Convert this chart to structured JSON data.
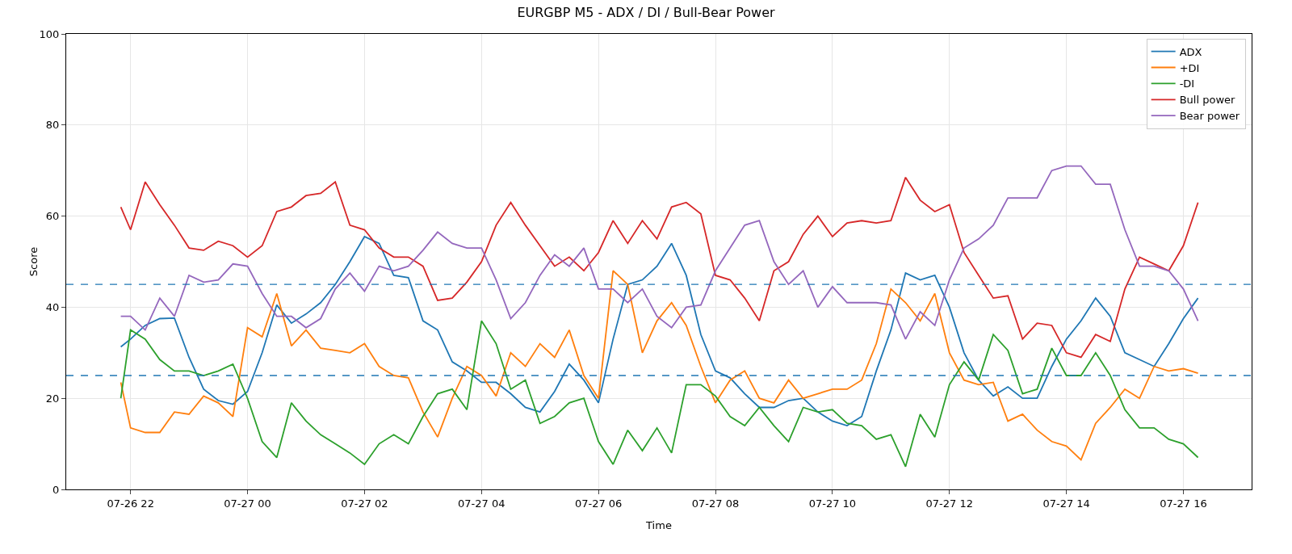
{
  "chart_data": {
    "type": "line",
    "title": "EURGBP M5 - ADX / DI / Bull-Bear Power",
    "xlabel": "Time",
    "ylabel": "Score",
    "x": [
      "--07-26T21:50",
      "--07-26T22:00",
      "--07-26T22:15",
      "--07-26T22:30",
      "--07-26T22:45",
      "--07-26T23:00",
      "--07-26T23:15",
      "--07-26T23:30",
      "--07-26T23:45",
      "--07-27T00:00",
      "--07-27T00:15",
      "--07-27T00:30",
      "--07-27T00:45",
      "--07-27T01:00",
      "--07-27T01:15",
      "--07-27T01:30",
      "--07-27T01:45",
      "--07-27T02:00",
      "--07-27T02:15",
      "--07-27T02:30",
      "--07-27T02:45",
      "--07-27T03:00",
      "--07-27T03:15",
      "--07-27T03:30",
      "--07-27T03:45",
      "--07-27T04:00",
      "--07-27T04:15",
      "--07-27T04:30",
      "--07-27T04:45",
      "--07-27T05:00",
      "--07-27T05:15",
      "--07-27T05:30",
      "--07-27T05:45",
      "--07-27T06:00",
      "--07-27T06:15",
      "--07-27T06:30",
      "--07-27T06:45",
      "--07-27T07:00",
      "--07-27T07:15",
      "--07-27T07:30",
      "--07-27T07:45",
      "--07-27T08:00",
      "--07-27T08:15",
      "--07-27T08:30",
      "--07-27T08:45",
      "--07-27T09:00",
      "--07-27T09:15",
      "--07-27T09:30",
      "--07-27T09:45",
      "--07-27T10:00",
      "--07-27T10:15",
      "--07-27T10:30",
      "--07-27T10:45",
      "--07-27T11:00",
      "--07-27T11:15",
      "--07-27T11:30",
      "--07-27T11:45",
      "--07-27T12:00",
      "--07-27T12:15",
      "--07-27T12:30",
      "--07-27T12:45",
      "--07-27T13:00",
      "--07-27T13:15",
      "--07-27T13:30",
      "--07-27T13:45",
      "--07-27T14:00",
      "--07-27T14:15",
      "--07-27T14:30",
      "--07-27T14:45",
      "--07-27T15:00",
      "--07-27T15:15",
      "--07-27T15:30",
      "--07-27T15:45",
      "--07-27T16:00",
      "--07-27T16:15"
    ],
    "series": [
      {
        "name": "ADX",
        "color": "#1f77b4",
        "values": [
          31.3,
          33,
          36,
          37.5,
          37.6,
          29,
          22,
          19.5,
          18.7,
          21.5,
          30,
          40.5,
          36.5,
          38.5,
          41,
          45,
          50,
          55.5,
          54,
          47,
          46.5,
          37,
          35,
          28,
          26,
          23.5,
          23.5,
          21,
          18,
          17,
          21.5,
          27.5,
          24,
          19,
          33,
          45,
          46,
          49,
          54,
          47,
          34,
          26,
          24.5,
          21,
          18,
          18,
          19.5,
          20,
          17,
          15,
          14,
          16,
          26,
          35,
          47.5,
          46,
          47,
          40,
          30,
          24,
          20.5,
          22.5,
          20,
          20,
          27,
          33,
          37,
          42,
          38,
          30,
          28.5,
          27,
          32,
          37.5,
          42
        ]
      },
      {
        "name": "+DI",
        "color": "#ff7f0e",
        "values": [
          23.5,
          13.5,
          12.5,
          12.5,
          17,
          16.5,
          20.5,
          19,
          16,
          35.5,
          33.5,
          43,
          31.5,
          35,
          31,
          30.5,
          30,
          32,
          27,
          25,
          24.5,
          17,
          11.5,
          20,
          27,
          25,
          20.5,
          30,
          27,
          32,
          29,
          35,
          25,
          20,
          48,
          45,
          30,
          37,
          41,
          36,
          27,
          19,
          24,
          26,
          20,
          19,
          24,
          20,
          21,
          22,
          22,
          24,
          32,
          44,
          41,
          37,
          43,
          30,
          24,
          23,
          23.5,
          15,
          16.5,
          13,
          10.5,
          9.5,
          6.5,
          14.5,
          18,
          22,
          20,
          27,
          26,
          26.5,
          25.5
        ]
      },
      {
        "name": "-DI",
        "color": "#2ca02c",
        "values": [
          20,
          35,
          33,
          28.5,
          26,
          26,
          25,
          26,
          27.5,
          20,
          10.5,
          7,
          19,
          15,
          12,
          10,
          8,
          5.5,
          10,
          12,
          10,
          16,
          21,
          22,
          17.5,
          37,
          32,
          22,
          24,
          14.5,
          16,
          19,
          20,
          10.5,
          5.5,
          13,
          8.5,
          13.5,
          8,
          23,
          23,
          20.5,
          16,
          14,
          18,
          14,
          10.5,
          18,
          17,
          17.5,
          14.5,
          14,
          11,
          12,
          5,
          16.5,
          11.5,
          23,
          28,
          24,
          34,
          30.5,
          21,
          22,
          31,
          25,
          25,
          30,
          25,
          17.5,
          13.5,
          13.5,
          11,
          10,
          7
        ]
      },
      {
        "name": "Bull power",
        "color": "#d62728",
        "values": [
          62,
          57,
          67.5,
          62.5,
          58,
          53,
          52.5,
          54.5,
          53.5,
          51,
          53.5,
          61,
          62,
          64.5,
          65,
          67.5,
          58,
          57,
          53,
          51,
          51,
          49,
          41.5,
          42,
          45.5,
          50,
          58,
          63,
          58,
          53.5,
          49,
          51,
          48,
          52,
          59,
          54,
          59,
          55,
          62,
          63,
          60.5,
          47,
          46,
          42,
          37,
          48,
          50,
          56,
          60,
          55.5,
          58.5,
          59,
          58.5,
          59,
          68.5,
          63.5,
          61,
          62.5,
          52,
          47,
          42,
          42.5,
          33,
          36.5,
          36,
          30,
          29,
          34,
          32.5,
          44,
          51,
          49.5,
          48,
          53.5,
          63
        ]
      },
      {
        "name": "Bear power",
        "color": "#9467bd",
        "values": [
          38,
          38,
          35,
          42,
          38,
          47,
          45.5,
          46,
          49.5,
          49,
          43,
          38,
          38,
          35.5,
          37.5,
          44,
          47.5,
          43.5,
          49,
          48,
          49,
          52.5,
          56.5,
          54,
          53,
          53,
          46,
          37.5,
          41,
          47,
          51.5,
          49,
          53,
          44,
          44,
          41,
          44,
          38,
          35.5,
          40,
          40.5,
          48,
          53,
          58,
          59,
          50,
          45,
          48,
          40,
          44.5,
          41,
          41,
          41,
          40.5,
          33,
          39,
          36,
          46,
          53,
          55,
          58,
          64,
          64,
          64,
          70,
          71,
          71,
          67,
          67,
          57,
          49,
          49,
          48,
          44,
          37
        ]
      }
    ],
    "ref_lines": [
      {
        "axis": "y",
        "value": 45,
        "color": "#1f77b4",
        "line_style": "dashed"
      },
      {
        "axis": "y",
        "value": 25,
        "color": "#1f77b4",
        "line_style": "dashed"
      }
    ],
    "xlim": [
      "--07-26T20:54",
      "--07-27T17:10"
    ],
    "xticks": [
      {
        "value": "--07-26T22:00",
        "label": "07-26 22"
      },
      {
        "value": "--07-27T00:00",
        "label": "07-27 00"
      },
      {
        "value": "--07-27T02:00",
        "label": "07-27 02"
      },
      {
        "value": "--07-27T04:00",
        "label": "07-27 04"
      },
      {
        "value": "--07-27T06:00",
        "label": "07-27 06"
      },
      {
        "value": "--07-27T08:00",
        "label": "07-27 08"
      },
      {
        "value": "--07-27T10:00",
        "label": "07-27 10"
      },
      {
        "value": "--07-27T12:00",
        "label": "07-27 12"
      },
      {
        "value": "--07-27T14:00",
        "label": "07-27 14"
      },
      {
        "value": "--07-27T16:00",
        "label": "07-27 16"
      }
    ],
    "ylim": [
      0,
      100
    ],
    "yticks": [
      0,
      20,
      40,
      60,
      80,
      100
    ],
    "grid": true,
    "legend": "top right",
    "marker": "none",
    "line_style": "solid"
  }
}
